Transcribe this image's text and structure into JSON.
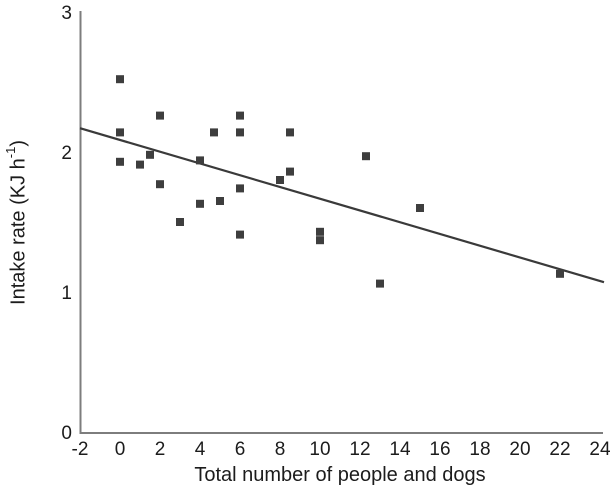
{
  "chart_data": {
    "type": "scatter",
    "title": "",
    "xlabel": "Total number of people and dogs",
    "ylabel_prefix": "Intake rate (KJ h",
    "ylabel_sup": "-1",
    "ylabel_suffix": ")",
    "xlim": [
      -2,
      24
    ],
    "ylim": [
      0,
      3
    ],
    "x_ticks": [
      -2,
      0,
      2,
      4,
      6,
      8,
      10,
      12,
      14,
      16,
      18,
      20,
      22,
      24
    ],
    "y_ticks": [
      0,
      1,
      2,
      3
    ],
    "grid": false,
    "legend": false,
    "marker": "filled-square",
    "marker_color": "#3e3e3e",
    "trend_color": "#3a3a3a",
    "axis_color": "#7d7d7d",
    "text_color": "#1c1c1c",
    "points": [
      [
        0,
        2.52
      ],
      [
        0,
        2.14
      ],
      [
        0,
        1.93
      ],
      [
        1,
        1.91
      ],
      [
        1.5,
        1.98
      ],
      [
        2,
        2.26
      ],
      [
        2,
        1.77
      ],
      [
        3,
        1.5
      ],
      [
        4,
        1.94
      ],
      [
        4,
        1.63
      ],
      [
        4.7,
        2.14
      ],
      [
        5,
        1.65
      ],
      [
        6,
        2.26
      ],
      [
        6,
        2.14
      ],
      [
        6,
        1.74
      ],
      [
        6,
        1.41
      ],
      [
        8,
        1.8
      ],
      [
        8.5,
        2.14
      ],
      [
        8.5,
        1.86
      ],
      [
        10,
        1.43
      ],
      [
        10,
        1.37
      ],
      [
        12.3,
        1.97
      ],
      [
        13,
        1.06
      ],
      [
        15,
        1.6
      ],
      [
        22,
        1.13
      ]
    ],
    "trend_line": {
      "x1": -2,
      "y1": 2.17,
      "x2": 24.2,
      "y2": 1.07
    }
  }
}
